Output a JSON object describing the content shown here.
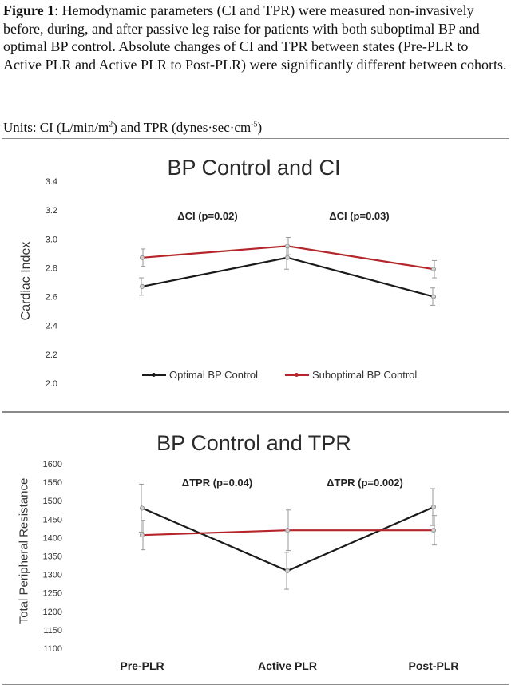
{
  "caption": {
    "figure_label": "Figure 1",
    "text": ": Hemodynamic parameters (CI and TPR) were measured non-invasively before, during, and after passive leg raise for patients with both suboptimal BP and optimal BP control. Absolute changes of CI and TPR between states (Pre-PLR to Active PLR and Active PLR to Post-PLR) were significantly different between cohorts.",
    "units_prefix": "Units: CI (L/min/m",
    "units_sup1": "2",
    "units_mid": ") and TPR (dynes·sec·cm",
    "units_sup2": "-5",
    "units_suffix": ")"
  },
  "colors": {
    "optimal": "#1a1a1a",
    "suboptimal": "#b5262b",
    "error_bar": "#9a9a9a"
  },
  "chart_data": [
    {
      "type": "line",
      "title": "BP Control and CI",
      "ylabel": "Cardiac Index",
      "xlabel": "",
      "categories": [
        "Pre-PLR",
        "Active PLR",
        "Post-PLR"
      ],
      "show_x_ticks": false,
      "ylim": [
        2.0,
        3.4
      ],
      "yticks": [
        "2.0",
        "2.2",
        "2.4",
        "2.6",
        "2.8",
        "3.0",
        "3.2",
        "3.4"
      ],
      "grid": false,
      "legend": "bottom",
      "series": [
        {
          "name": "Optimal BP Control",
          "values": [
            2.67,
            2.87,
            2.6
          ],
          "error": [
            0.06,
            0.08,
            0.06
          ]
        },
        {
          "name": "Suboptimal BP Control",
          "values": [
            2.87,
            2.95,
            2.79
          ],
          "error": [
            0.06,
            0.06,
            0.06
          ]
        }
      ],
      "annotations": [
        "ΔCI (p=0.02)",
        "ΔCI (p=0.03)"
      ]
    },
    {
      "type": "line",
      "title": "BP Control and TPR",
      "ylabel": "Total Peripheral Resistance",
      "xlabel": "",
      "categories": [
        "Pre-PLR",
        "Active PLR",
        "Post-PLR"
      ],
      "show_x_ticks": true,
      "ylim": [
        1100,
        1600
      ],
      "yticks": [
        "1100",
        "1150",
        "1200",
        "1250",
        "1300",
        "1350",
        "1400",
        "1450",
        "1500",
        "1550",
        "1600"
      ],
      "grid": false,
      "series": [
        {
          "name": "Optimal BP Control",
          "values": [
            1480,
            1310,
            1483
          ],
          "error": [
            65,
            50,
            50
          ]
        },
        {
          "name": "Suboptimal BP Control",
          "values": [
            1407,
            1420,
            1420
          ],
          "error": [
            40,
            55,
            40
          ]
        }
      ],
      "annotations": [
        "ΔTPR (p=0.04)",
        "ΔTPR (p=0.002)"
      ]
    }
  ]
}
